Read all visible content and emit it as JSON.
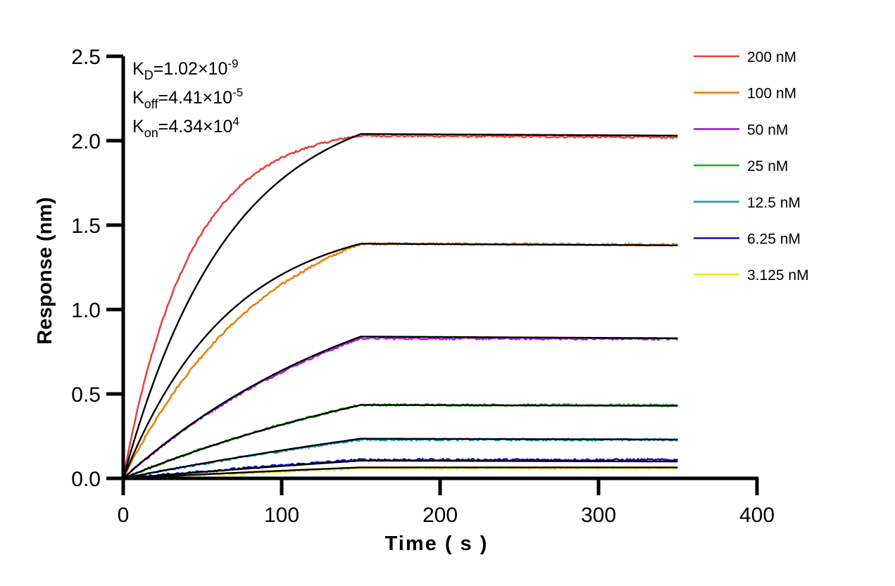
{
  "chart_data": {
    "type": "line",
    "title": "",
    "xlabel": "Time ( s )",
    "ylabel": "Response (nm)",
    "xlim": [
      0,
      400
    ],
    "ylim": [
      0,
      2.5
    ],
    "x_ticks": [
      0,
      100,
      200,
      300,
      400
    ],
    "x_tick_labels": [
      "0",
      "100",
      "200",
      "300",
      "400"
    ],
    "y_ticks": [
      0,
      0.5,
      1.0,
      1.5,
      2.0,
      2.5
    ],
    "y_tick_labels": [
      "0.0",
      "0.5",
      "1.0",
      "1.5",
      "2.0",
      "2.5"
    ],
    "grid": false,
    "legend_position": "right",
    "association_end_s": 150,
    "experiment_end_s": 350,
    "annotations": [
      {
        "main": "K",
        "sub": "D",
        "rest": "=1.02×10",
        "sup": "-9"
      },
      {
        "main": "K",
        "sub": "off",
        "rest": "=4.41×10",
        "sup": "-5"
      },
      {
        "main": "K",
        "sub": "on",
        "rest": "=4.34×10",
        "sup": "4"
      }
    ],
    "series": [
      {
        "name": "200 nM",
        "color": "#e8423a",
        "plateau": 2.03,
        "fit_plateau": 2.04,
        "fit_end": 2.03,
        "shape": 1.2,
        "fit_shape": 0.75
      },
      {
        "name": "100 nM",
        "color": "#f07f0b",
        "plateau": 1.39,
        "fit_plateau": 1.39,
        "fit_end": 1.38,
        "shape": 0.55,
        "fit_shape": 0.75
      },
      {
        "name": "50 nM",
        "color": "#a21fd6",
        "plateau": 0.83,
        "fit_plateau": 0.84,
        "fit_end": 0.83,
        "shape": 0.3,
        "fit_shape": 0.3
      },
      {
        "name": "25 nM",
        "color": "#22b51f",
        "plateau": 0.435,
        "fit_plateau": 0.435,
        "fit_end": 0.43,
        "shape": 0.2,
        "fit_shape": 0.2
      },
      {
        "name": "12.5 nM",
        "color": "#1d9bb5",
        "plateau": 0.23,
        "fit_plateau": 0.235,
        "fit_end": 0.23,
        "shape": 0.12,
        "fit_shape": 0.12
      },
      {
        "name": "6.25 nM",
        "color": "#1010c8",
        "plateau": 0.11,
        "fit_plateau": 0.105,
        "fit_end": 0.1,
        "shape": 0.1,
        "fit_shape": 0.08
      },
      {
        "name": "3.125 nM",
        "color": "#f4ea16",
        "plateau": 0.06,
        "fit_plateau": 0.065,
        "fit_end": 0.065,
        "shape": 0.05,
        "fit_shape": 0.08
      }
    ],
    "fit_color": "#000000"
  }
}
